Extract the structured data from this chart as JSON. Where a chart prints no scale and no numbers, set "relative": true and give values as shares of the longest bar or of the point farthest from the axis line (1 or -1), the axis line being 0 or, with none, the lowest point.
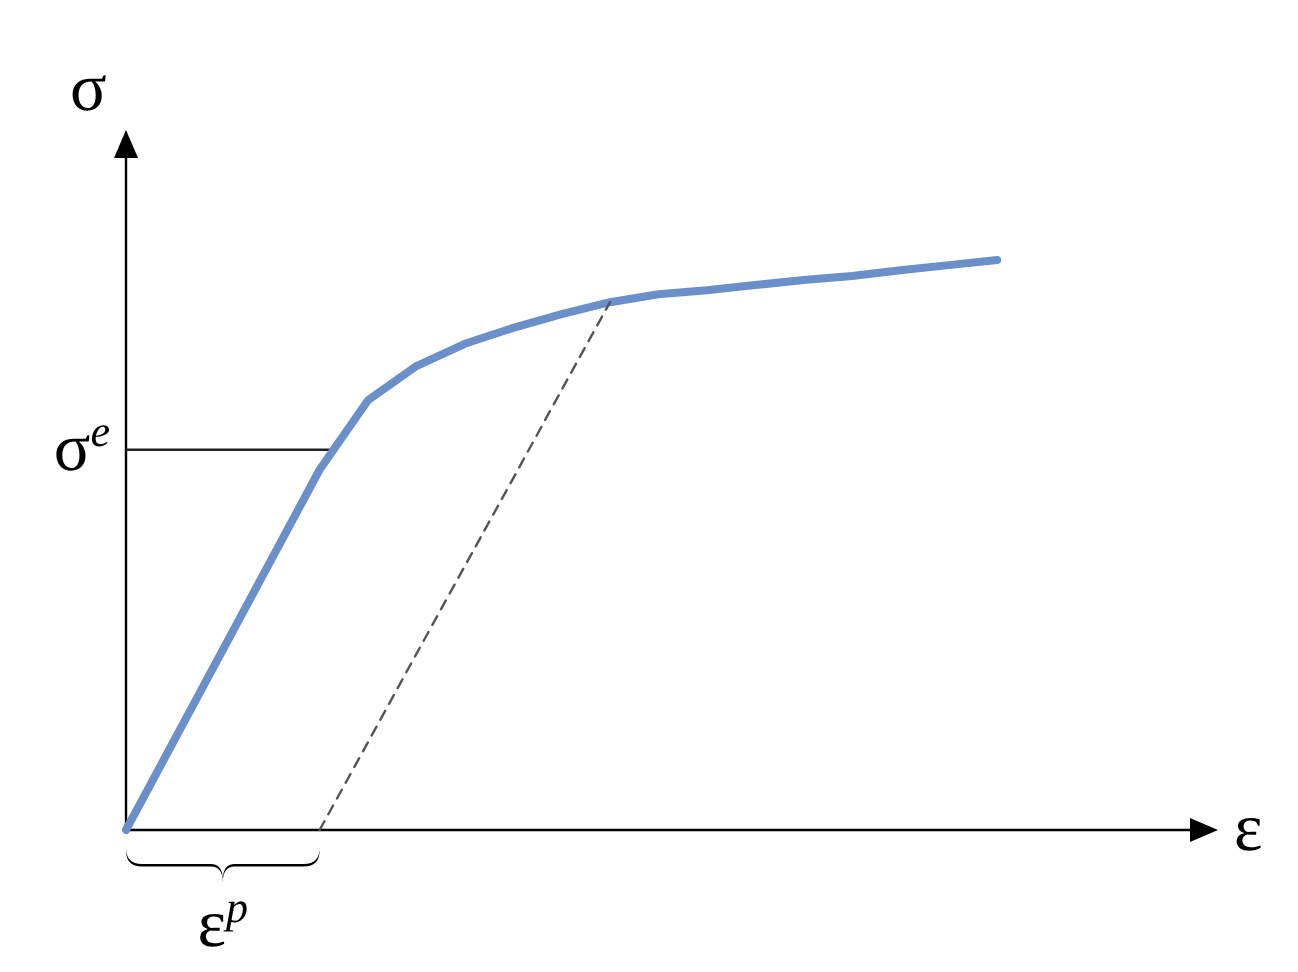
{
  "chart_data": {
    "type": "line",
    "relative": true,
    "xlabel": "ε",
    "ylabel": "σ",
    "categories": [
      null,
      null,
      null,
      null,
      null,
      null,
      null,
      null,
      null,
      null,
      null,
      null,
      null,
      null,
      null,
      null,
      null,
      null,
      null
    ],
    "series": [
      {
        "color": "#6b8fc9",
        "values": [
          0,
          0.158,
          0.316,
          0.474,
          0.632,
          0.754,
          0.814,
          0.853,
          0.881,
          0.905,
          0.926,
          0.94,
          0.947,
          0.956,
          0.965,
          0.972,
          0.982,
          0.991,
          1
        ]
      },
      {
        "color": "#555555",
        "line_style": "dashed",
        "values": [
          null,
          null,
          null,
          null,
          0,
          0.154,
          0.309,
          0.463,
          0.617,
          0.772,
          0.926,
          null,
          null,
          null,
          null,
          null,
          null,
          null,
          null
        ]
      }
    ],
    "ref_lines": [
      {
        "axis": "y",
        "value": 0.667,
        "label": "σ$^{e}$",
        "color": "#222222"
      }
    ],
    "annotations": [
      "ε$^{p}$"
    ]
  }
}
